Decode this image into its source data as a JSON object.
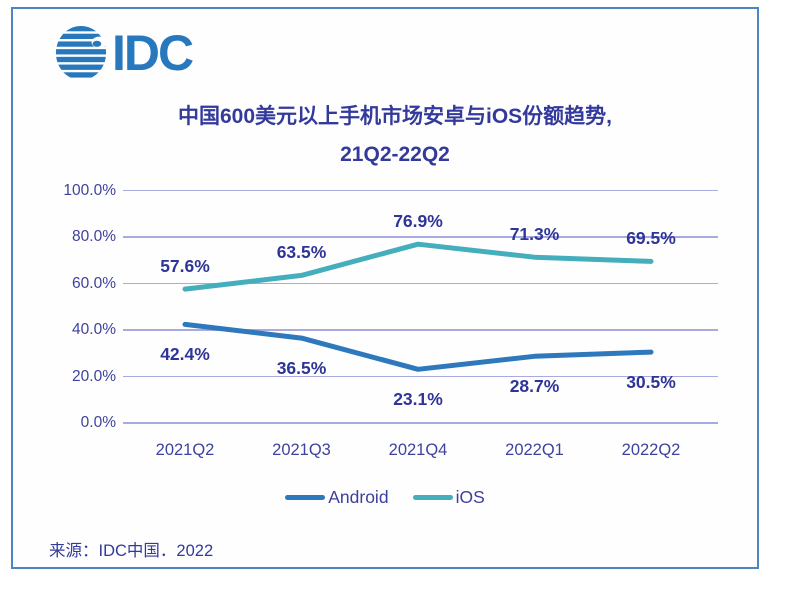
{
  "logo": {
    "text": "IDC",
    "icon": "globe-stripes-icon",
    "color": "#2878be"
  },
  "title": {
    "line1": "中国600美元以上手机市场安卓与iOS份额趋势,",
    "line2": "21Q2-22Q2"
  },
  "source": "来源：IDC中国．2022",
  "colors": {
    "frame_border": "#4a86c4",
    "gridline": "#a9aadf",
    "title_text": "#333a9b",
    "tick_text": "#3e429f",
    "data_label_text": "#2f3598",
    "android_line": "#2e79bc",
    "ios_line": "#45aebc"
  },
  "chart_data": {
    "type": "line",
    "title": "中国600美元以上手机市场安卓与iOS份额趋势, 21Q2-22Q2",
    "categories": [
      "2021Q2",
      "2021Q3",
      "2021Q4",
      "2022Q1",
      "2022Q2"
    ],
    "series": [
      {
        "name": "Android",
        "values": [
          42.4,
          36.5,
          23.1,
          28.7,
          30.5
        ],
        "color": "#2e79bc",
        "label_position": "below",
        "data_labels": [
          "42.4%",
          "36.5%",
          "23.1%",
          "28.7%",
          "30.5%"
        ]
      },
      {
        "name": "iOS",
        "values": [
          57.6,
          63.5,
          76.9,
          71.3,
          69.5
        ],
        "color": "#45aebc",
        "label_position": "above",
        "data_labels": [
          "57.6%",
          "63.5%",
          "76.9%",
          "71.3%",
          "69.5%"
        ]
      }
    ],
    "xlabel": "",
    "ylabel": "",
    "ylim": [
      0,
      100
    ],
    "ytick_values": [
      100,
      80,
      60,
      40,
      20,
      0
    ],
    "ytick_labels": [
      "100.0%",
      "80.0%",
      "60.0%",
      "40.0%",
      "20.0%",
      "0.0%"
    ],
    "grid": "horizontal",
    "legend_position": "bottom"
  }
}
